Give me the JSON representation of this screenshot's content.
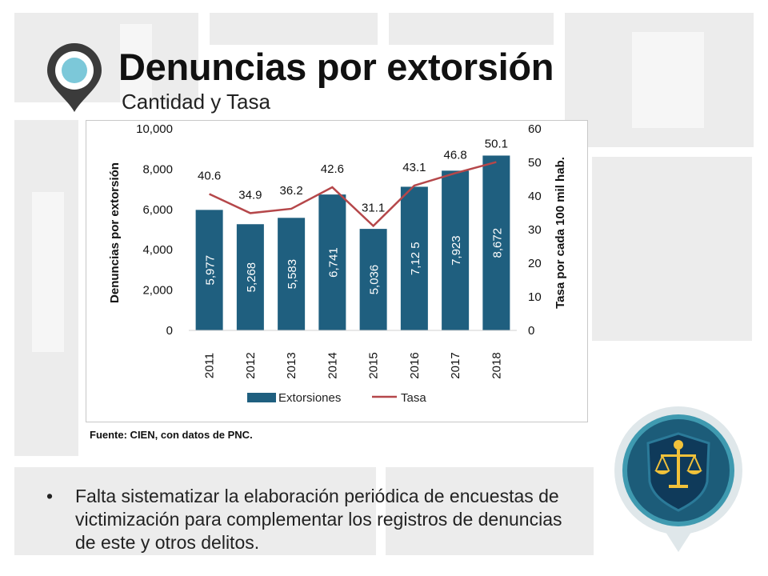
{
  "header": {
    "title": "Denuncias por extorsión",
    "subtitle": "Cantidad y Tasa"
  },
  "chart_data": {
    "type": "bar",
    "categories": [
      "2011",
      "2012",
      "2013",
      "2014",
      "2015",
      "2016",
      "2017",
      "2018"
    ],
    "series": [
      {
        "name": "Extorsiones",
        "kind": "bar",
        "axis": "left",
        "values": [
          5977,
          5268,
          5583,
          6741,
          5036,
          7125,
          7923,
          8672
        ],
        "labels": [
          "5,977",
          "5,268",
          "5,583",
          "6,741",
          "5,036",
          "7,12 5",
          "7,923",
          "8,672"
        ],
        "color": "#1f5f7f"
      },
      {
        "name": "Tasa",
        "kind": "line",
        "axis": "right",
        "values": [
          40.6,
          34.9,
          36.2,
          42.6,
          31.1,
          43.1,
          46.8,
          50.1
        ],
        "labels": [
          "40.6",
          "34.9",
          "36.2",
          "42.6",
          "31.1",
          "43.1",
          "46.8",
          "50.1"
        ],
        "color": "#b5474a"
      }
    ],
    "ylabel": "Denuncias por extorsión",
    "ylabel_right": "Tasa por cada 100 mil hab.",
    "ylim": [
      0,
      10000
    ],
    "yticks": [
      "0",
      "2,000",
      "4,000",
      "6,000",
      "8,000",
      "10,000"
    ],
    "ylim_right": [
      0,
      60
    ],
    "yticks_right": [
      "0",
      "10",
      "20",
      "30",
      "40",
      "50",
      "60"
    ],
    "legend": {
      "position": "bottom",
      "entries": [
        "Extorsiones",
        "Tasa"
      ]
    },
    "grid": false
  },
  "source": "Fuente: CIEN, con datos de PNC.",
  "bullets": [
    "Falta sistematizar la elaboración periódica de encuestas de victimización para complementar los registros de denuncias de este y otros delitos."
  ],
  "icons": {
    "header": "location-pin-icon",
    "badge": "justice-scale-badge-icon"
  },
  "colors": {
    "bar": "#1f5f7f",
    "line": "#b5474a",
    "pin_outer": "#3a3a3a",
    "pin_inner": "#7cc8d9",
    "badge": "#1a5878"
  }
}
